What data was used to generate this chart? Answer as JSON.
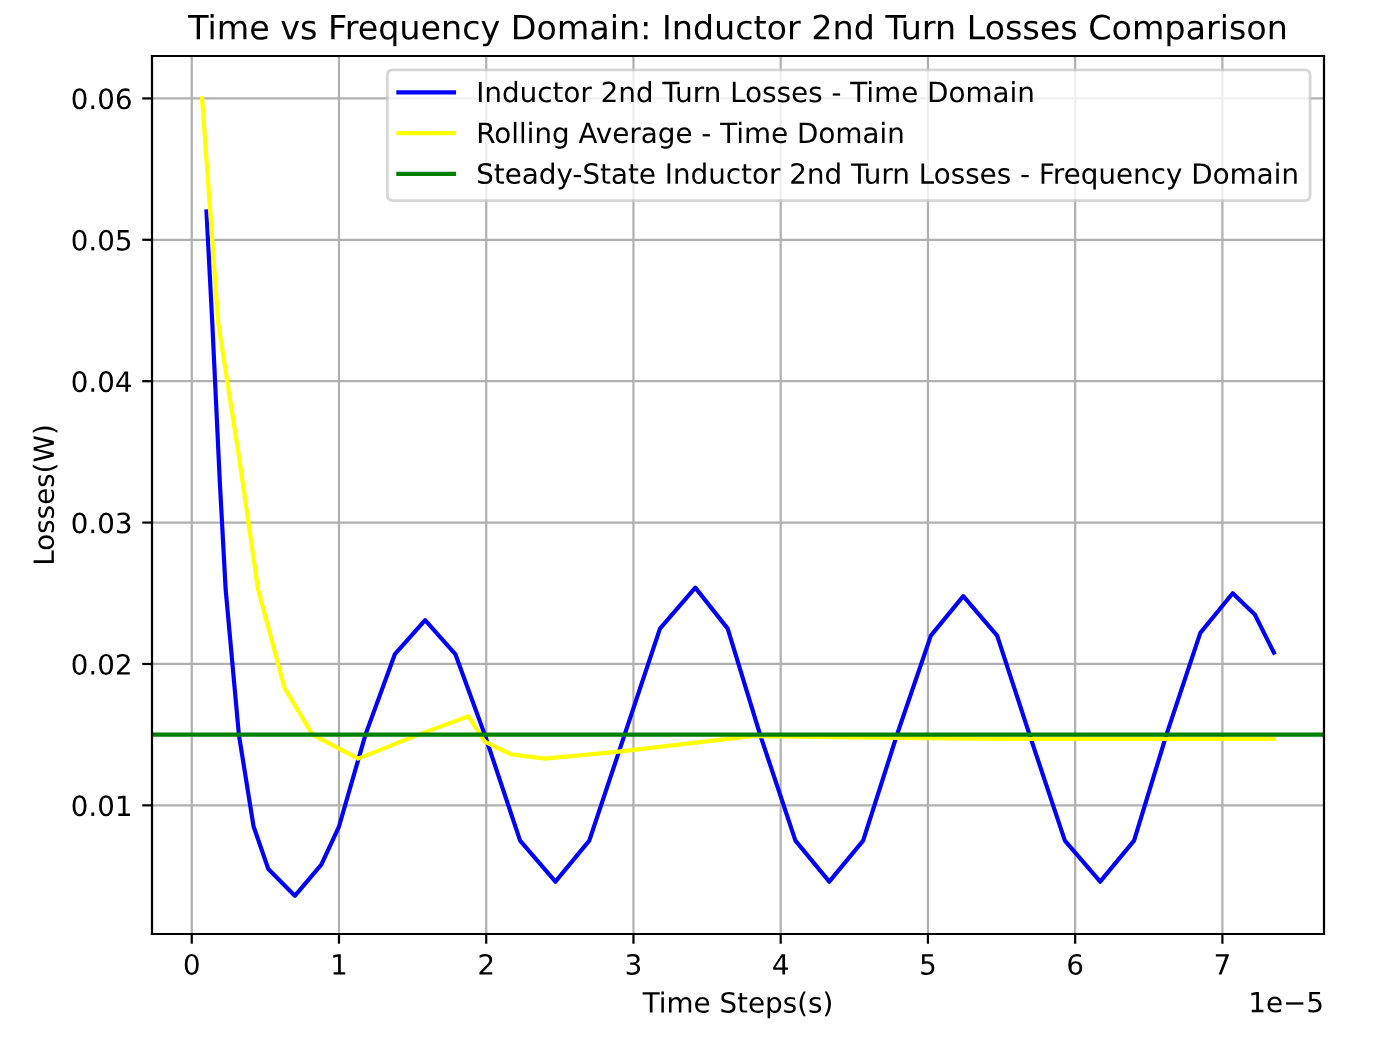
{
  "chart_data": {
    "type": "line",
    "title": "Time vs Frequency Domain: Inductor 2nd Turn Losses Comparison",
    "xlabel": "Time Steps(s)",
    "ylabel": "Losses(W)",
    "series": [
      {
        "name": "Inductor 2nd Turn Losses - Time Domain",
        "color": "#0000ff",
        "x": [
          0.1,
          0.14,
          0.19,
          0.23,
          0.32,
          0.42,
          0.52,
          0.7,
          0.88,
          1.0,
          1.18,
          1.38,
          1.585,
          1.79,
          1.99,
          2.23,
          2.47,
          2.7,
          2.94,
          3.18,
          3.42,
          3.64,
          3.86,
          4.1,
          4.33,
          4.56,
          4.79,
          5.02,
          5.24,
          5.47,
          5.69,
          5.93,
          6.17,
          6.4,
          6.62,
          6.85,
          7.07,
          7.22,
          7.35
        ],
        "values": [
          0.052,
          0.044,
          0.033,
          0.0253,
          0.015,
          0.0085,
          0.0055,
          0.0036,
          0.0058,
          0.0085,
          0.015,
          0.0207,
          0.0231,
          0.0207,
          0.015,
          0.0075,
          0.0046,
          0.0075,
          0.015,
          0.0225,
          0.0254,
          0.0225,
          0.015,
          0.0075,
          0.0046,
          0.0075,
          0.015,
          0.022,
          0.0248,
          0.022,
          0.015,
          0.0075,
          0.0046,
          0.0075,
          0.015,
          0.0222,
          0.025,
          0.0235,
          0.0208
        ]
      },
      {
        "name": "Rolling Average - Time Domain",
        "color": "#ffff00",
        "x": [
          0.07,
          0.18,
          0.32,
          0.45,
          0.63,
          0.82,
          1.13,
          1.54,
          1.88,
          1.99,
          2.17,
          2.4,
          2.9,
          3.8,
          4.5,
          5.5,
          6.5,
          7.35
        ],
        "values": [
          0.06,
          0.0441,
          0.0347,
          0.0253,
          0.0183,
          0.015,
          0.0133,
          0.015,
          0.0163,
          0.0145,
          0.0136,
          0.0133,
          0.0138,
          0.0149,
          0.0148,
          0.0147,
          0.0147,
          0.0147
        ]
      }
    ],
    "ref_lines": [
      {
        "axis": "y",
        "value": 0.015,
        "label": "Steady-State Inductor 2nd Turn Losses - Frequency Domain",
        "color": "#008000"
      }
    ],
    "xlim": [
      -0.27,
      7.69
    ],
    "xticks": [
      0,
      1,
      2,
      3,
      4,
      5,
      6,
      7
    ],
    "ylim": [
      0.0009,
      0.063
    ],
    "yticks": [
      0.01,
      0.02,
      0.03,
      0.04,
      0.05,
      0.06
    ],
    "annotations": [
      "1e−5"
    ],
    "grid": true,
    "legend": "top right"
  }
}
